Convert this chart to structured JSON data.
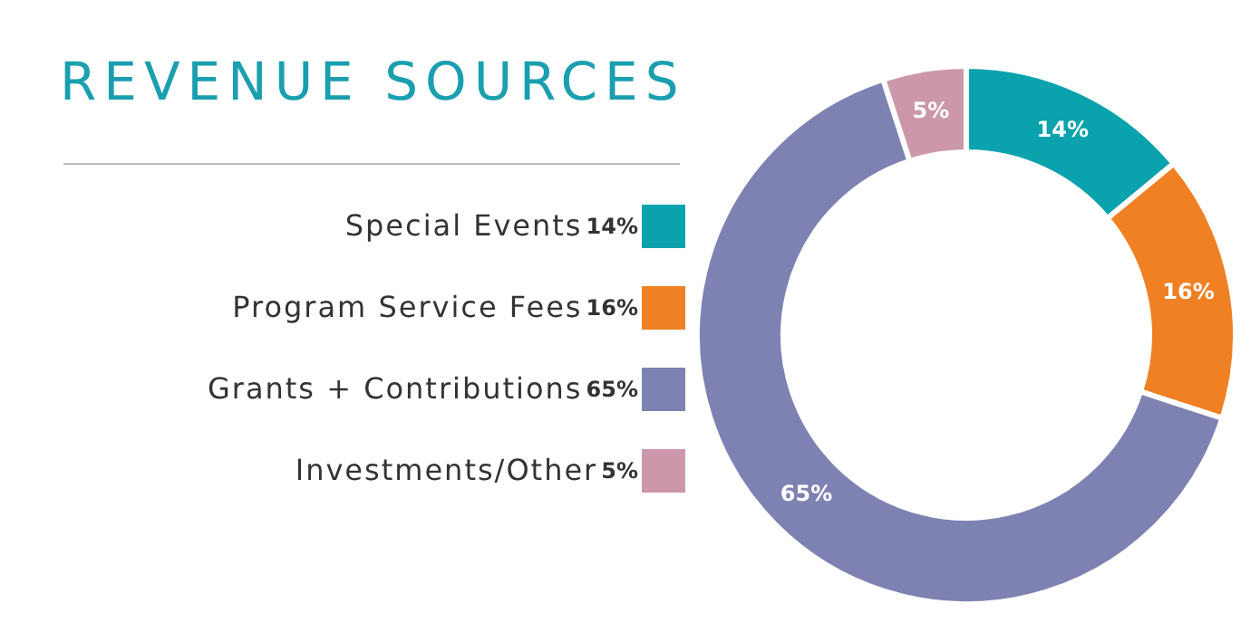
{
  "chart_data": {
    "type": "donut",
    "title": "REVENUE SOURCES",
    "categories": [
      "Special Events",
      "Program Service Fees",
      "Grants + Contributions",
      "Investments/Other"
    ],
    "values": [
      14,
      16,
      65,
      5
    ],
    "value_labels": [
      "14%",
      "16%",
      "65%",
      "5%"
    ],
    "colors": [
      "#0aa3ad",
      "#f08024",
      "#7e82b2",
      "#cc97ab"
    ],
    "legend": "left"
  }
}
